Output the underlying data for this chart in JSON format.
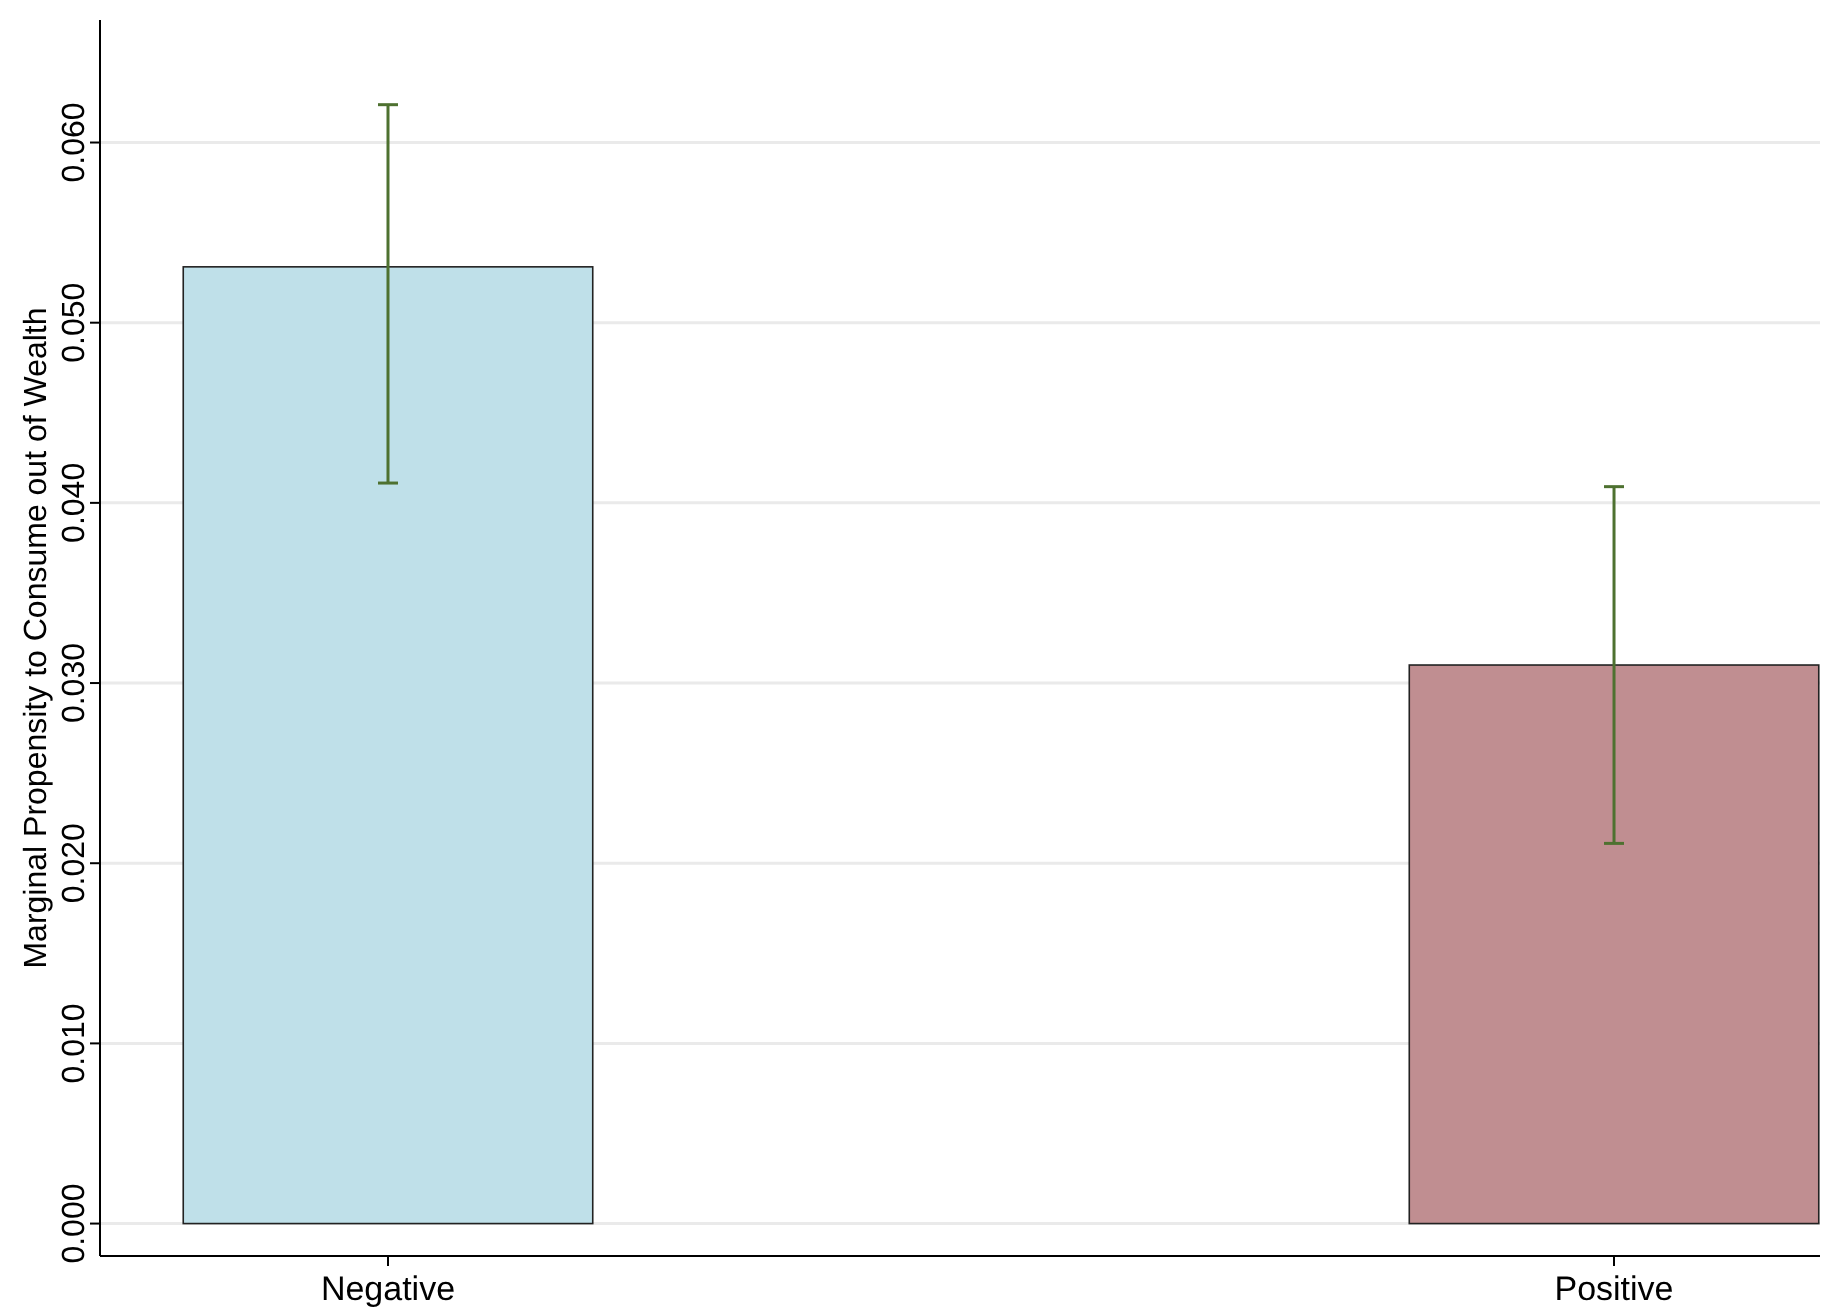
{
  "chart_data": {
    "type": "bar",
    "ylabel": "Marginal Propensity to Consume out of Wealth",
    "categories": [
      "Negative",
      "Positive"
    ],
    "values": [
      0.0531,
      0.031
    ],
    "colors": [
      "#bfe0e9",
      "#c08e91"
    ],
    "errors": [
      [
        0.0411,
        0.0621
      ],
      [
        0.0211,
        0.0409
      ]
    ],
    "ylim": [
      -0.0018,
      0.0668
    ],
    "yticks": [
      {
        "value": 0,
        "label": "0.000"
      },
      {
        "value": 0.01,
        "label": "0.010"
      },
      {
        "value": 0.02,
        "label": "0.020"
      },
      {
        "value": 0.03,
        "label": "0.030"
      },
      {
        "value": 0.04,
        "label": "0.040"
      },
      {
        "value": 0.05,
        "label": "0.050"
      },
      {
        "value": 0.06,
        "label": "0.060"
      }
    ],
    "grid": "y"
  }
}
